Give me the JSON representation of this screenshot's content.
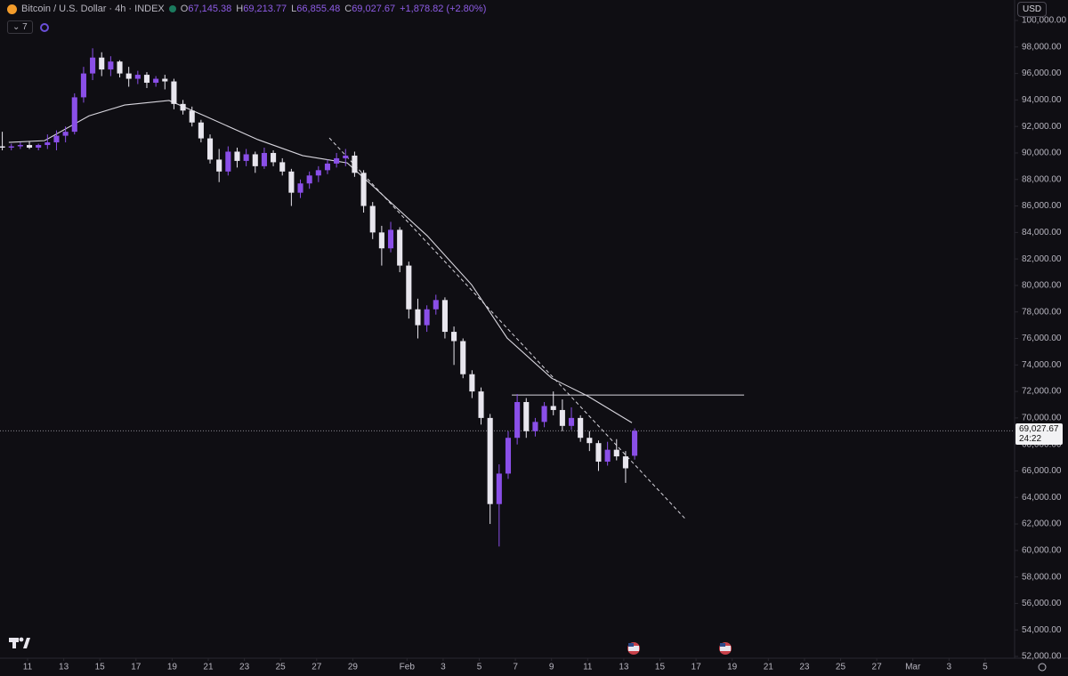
{
  "chart_data": {
    "type": "candlestick",
    "title": "Bitcoin / U.S. Dollar · 4h · INDEX",
    "header": {
      "o_label": "O",
      "o": "67,145.38",
      "h_label": "H",
      "h": "69,213.77",
      "l_label": "L",
      "l": "66,855.48",
      "c_label": "C",
      "c": "69,027.67",
      "change": "+1,878.82 (+2.80%)"
    },
    "indicator_label": "7",
    "currency": "USD",
    "up_color": "#8a4fe8",
    "down_color": "#e8e6ee",
    "x": [
      -1.4,
      -0.9,
      -0.4,
      0.1,
      0.6,
      1.1,
      1.6,
      2.1,
      2.6,
      3.1,
      3.6,
      4.1,
      4.6,
      5.1,
      5.6,
      6.1,
      6.6,
      7.1,
      7.6,
      8.1,
      8.6,
      9.1,
      9.6,
      10.1,
      10.6,
      11.1,
      11.6,
      12.1,
      12.6,
      13.1,
      13.6,
      14.1,
      14.6,
      15.1,
      15.6,
      16.1,
      16.6,
      17.1,
      17.6,
      18.1,
      18.6,
      19.1,
      19.6,
      20.1,
      20.6,
      21.1,
      21.6,
      22.1,
      22.6,
      23.1,
      23.6,
      24.1,
      24.6,
      25.1,
      25.6,
      26.1,
      26.6,
      27.1,
      27.6,
      28.1,
      28.6,
      29.1,
      29.6,
      30.1,
      30.6,
      31.1,
      31.6,
      32.1,
      32.6,
      33.1,
      33.6
    ],
    "open": [
      90500,
      90400,
      90500,
      90600,
      90400,
      90600,
      90800,
      91300,
      91600,
      94200,
      96000,
      97200,
      96300,
      96900,
      96000,
      95600,
      95900,
      95300,
      95600,
      95400,
      93700,
      93200,
      92300,
      91100,
      89500,
      88600,
      90100,
      89400,
      89900,
      89000,
      90000,
      89300,
      88600,
      87000,
      87700,
      88300,
      88700,
      89200,
      89600,
      89800,
      88500,
      86000,
      84000,
      82800,
      84200,
      81500,
      78200,
      77000,
      78200,
      78900,
      76500,
      75800,
      73300,
      72000,
      70000,
      63500,
      65800,
      68500,
      71200,
      69000,
      69700,
      70900,
      70600,
      69400,
      70000,
      68500,
      68100,
      66700,
      67600,
      67100,
      67145.38
    ],
    "high": [
      91600,
      90700,
      90800,
      90900,
      90700,
      91400,
      91700,
      92000,
      94500,
      96500,
      97900,
      97600,
      97300,
      97000,
      96500,
      96200,
      96100,
      95800,
      95900,
      95600,
      94000,
      93500,
      92500,
      91400,
      90300,
      90500,
      90400,
      90300,
      90100,
      90400,
      90200,
      89600,
      88800,
      88000,
      88600,
      89000,
      89500,
      90000,
      90300,
      90100,
      88700,
      86300,
      84500,
      84800,
      84400,
      81800,
      79000,
      78500,
      79300,
      79100,
      76900,
      76000,
      73600,
      72300,
      70300,
      66500,
      69000,
      71800,
      71500,
      70000,
      71200,
      72000,
      71400,
      70800,
      70200,
      69000,
      68300,
      68200,
      68400,
      67500,
      69213.77
    ],
    "low": [
      90200,
      90200,
      90300,
      90300,
      90200,
      90300,
      90200,
      90800,
      91400,
      93800,
      95500,
      95800,
      95800,
      95700,
      95000,
      95200,
      94900,
      95000,
      94800,
      93300,
      92900,
      92000,
      90800,
      89200,
      87800,
      88300,
      88900,
      89000,
      88500,
      88800,
      89000,
      88300,
      86000,
      86600,
      87300,
      87800,
      88400,
      88900,
      89000,
      88200,
      85500,
      83500,
      81500,
      82500,
      81000,
      77500,
      76000,
      76500,
      77800,
      76000,
      74000,
      73000,
      71500,
      69500,
      62000,
      60300,
      65400,
      68000,
      68500,
      68600,
      69300,
      70200,
      69000,
      69100,
      68200,
      67500,
      66000,
      66400,
      66800,
      65100,
      66855.48
    ],
    "close": [
      90400,
      90500,
      90600,
      90400,
      90600,
      90800,
      91300,
      91600,
      94200,
      96000,
      97200,
      96300,
      96900,
      96000,
      95600,
      95900,
      95300,
      95600,
      95400,
      93700,
      93200,
      92300,
      91100,
      89500,
      88600,
      90100,
      89400,
      89900,
      89000,
      90000,
      89300,
      88600,
      87000,
      87700,
      88300,
      88700,
      89200,
      89600,
      89800,
      88500,
      86000,
      84000,
      82800,
      84200,
      81500,
      78200,
      77000,
      78200,
      78900,
      76500,
      75800,
      73300,
      72000,
      70000,
      63500,
      65800,
      68500,
      71200,
      69000,
      69700,
      70900,
      70600,
      69400,
      70000,
      68500,
      68100,
      66700,
      67600,
      67100,
      66200,
      69027.67
    ],
    "ma": {
      "color": "#d8d6de",
      "x": [
        -1.04,
        0.94,
        3.4,
        5.37,
        7.83,
        9.8,
        12.76,
        15.22,
        17.69,
        19.16,
        22.12,
        24.58,
        26.55,
        29.01,
        30.99,
        33.45
      ],
      "values": [
        90800,
        90930,
        92800,
        93620,
        93960,
        92800,
        91000,
        89800,
        89250,
        87440,
        83750,
        80050,
        76020,
        73000,
        71660,
        69640
      ]
    },
    "trend_line": {
      "x": [
        16.7,
        36.4
      ],
      "values": [
        91135,
        62390
      ]
    },
    "resistance_line": {
      "x": [
        26.8,
        39.66
      ],
      "values": [
        71726,
        71726
      ]
    },
    "last_price": {
      "value": 69027.67,
      "label": "69,027.67"
    },
    "countdown": "24:22",
    "xlim": [
      -1.527,
      54.631
    ],
    "ylim": [
      51866,
      101545
    ],
    "xticks": [
      {
        "value": 0,
        "label": "11"
      },
      {
        "value": 2,
        "label": "13"
      },
      {
        "value": 4,
        "label": "15"
      },
      {
        "value": 6,
        "label": "17"
      },
      {
        "value": 8,
        "label": "19"
      },
      {
        "value": 10,
        "label": "21"
      },
      {
        "value": 12,
        "label": "23"
      },
      {
        "value": 14,
        "label": "25"
      },
      {
        "value": 16,
        "label": "27"
      },
      {
        "value": 18,
        "label": "29"
      },
      {
        "value": 21,
        "label": "Feb"
      },
      {
        "value": 23,
        "label": "3"
      },
      {
        "value": 25,
        "label": "5"
      },
      {
        "value": 27,
        "label": "7"
      },
      {
        "value": 29,
        "label": "9"
      },
      {
        "value": 31,
        "label": "11"
      },
      {
        "value": 33,
        "label": "13"
      },
      {
        "value": 35,
        "label": "15"
      },
      {
        "value": 37,
        "label": "17"
      },
      {
        "value": 39,
        "label": "19"
      },
      {
        "value": 41,
        "label": "21"
      },
      {
        "value": 43,
        "label": "23"
      },
      {
        "value": 45,
        "label": "25"
      },
      {
        "value": 47,
        "label": "27"
      },
      {
        "value": 49,
        "label": "Mar"
      },
      {
        "value": 51,
        "label": "3"
      },
      {
        "value": 53,
        "label": "5"
      }
    ],
    "yticks": [
      {
        "value": 52000,
        "label": "52,000.00"
      },
      {
        "value": 54000,
        "label": "54,000.00"
      },
      {
        "value": 56000,
        "label": "56,000.00"
      },
      {
        "value": 58000,
        "label": "58,000.00"
      },
      {
        "value": 60000,
        "label": "60,000.00"
      },
      {
        "value": 62000,
        "label": "62,000.00"
      },
      {
        "value": 64000,
        "label": "64,000.00"
      },
      {
        "value": 66000,
        "label": "66,000.00"
      },
      {
        "value": 68000,
        "label": "68,000.00"
      },
      {
        "value": 70000,
        "label": "70,000.00"
      },
      {
        "value": 72000,
        "label": "72,000.00"
      },
      {
        "value": 74000,
        "label": "74,000.00"
      },
      {
        "value": 76000,
        "label": "76,000.00"
      },
      {
        "value": 78000,
        "label": "78,000.00"
      },
      {
        "value": 80000,
        "label": "80,000.00"
      },
      {
        "value": 82000,
        "label": "82,000.00"
      },
      {
        "value": 84000,
        "label": "84,000.00"
      },
      {
        "value": 86000,
        "label": "86,000.00"
      },
      {
        "value": 88000,
        "label": "88,000.00"
      },
      {
        "value": 90000,
        "label": "90,000.00"
      },
      {
        "value": 92000,
        "label": "92,000.00"
      },
      {
        "value": 94000,
        "label": "94,000.00"
      },
      {
        "value": 96000,
        "label": "96,000.00"
      },
      {
        "value": 98000,
        "label": "98,000.00"
      },
      {
        "value": 100000,
        "label": "100,000.00"
      }
    ],
    "grid": false
  }
}
